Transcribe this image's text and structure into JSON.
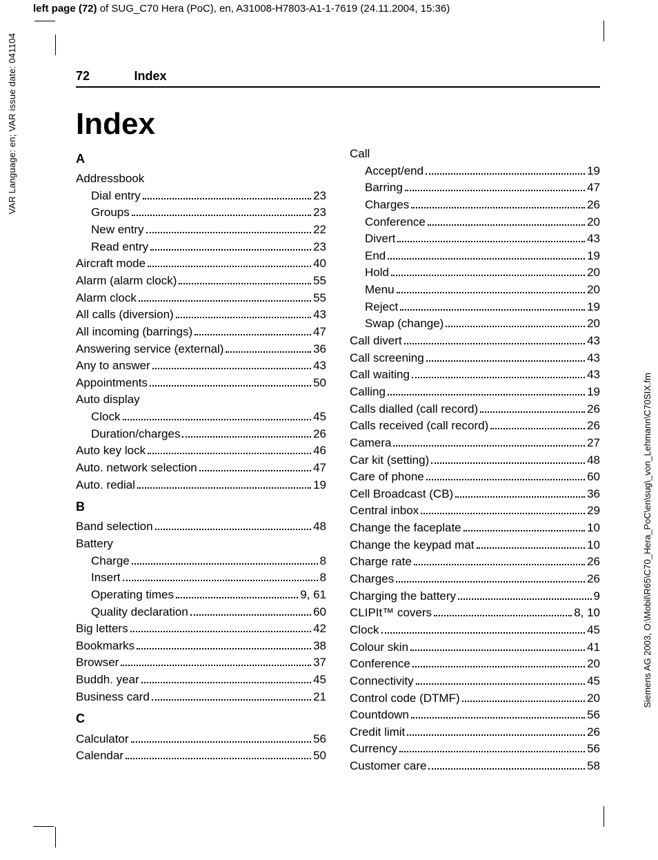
{
  "meta": {
    "top_bold": "left page (72)",
    "top_rest": " of SUG_C70 Hera (PoC), en, A31008-H7803-A1-1-7619 (24.11.2004, 15:36)",
    "left_side": "VAR Language: en; VAR issue date: 041104",
    "right_side": "Siemens AG 2003, O:\\Mobil\\R65\\C70_Hera_PoC\\en\\sug\\_von_Lehmann\\C70SIX.fm"
  },
  "header": {
    "page_number": "72",
    "section": "Index"
  },
  "title": "Index",
  "blocks": [
    {
      "type": "letter",
      "text": "A"
    },
    {
      "type": "heading",
      "label": "Addressbook"
    },
    {
      "type": "sub",
      "label": "Dial entry",
      "page": "23"
    },
    {
      "type": "sub",
      "label": "Groups",
      "page": "23"
    },
    {
      "type": "sub",
      "label": "New entry",
      "page": "22"
    },
    {
      "type": "sub",
      "label": "Read entry",
      "page": "23"
    },
    {
      "type": "entry",
      "label": "Aircraft mode",
      "page": "40"
    },
    {
      "type": "entry",
      "label": "Alarm (alarm clock)",
      "page": "55"
    },
    {
      "type": "entry",
      "label": "Alarm clock",
      "page": "55"
    },
    {
      "type": "entry",
      "label": "All calls (diversion)",
      "page": "43"
    },
    {
      "type": "entry",
      "label": "All incoming (barrings)",
      "page": "47"
    },
    {
      "type": "entry",
      "label": "Answering service (external)",
      "page": "36"
    },
    {
      "type": "entry",
      "label": "Any to answer",
      "page": "43"
    },
    {
      "type": "entry",
      "label": "Appointments",
      "page": "50"
    },
    {
      "type": "heading",
      "label": "Auto display"
    },
    {
      "type": "sub",
      "label": "Clock",
      "page": "45"
    },
    {
      "type": "sub",
      "label": "Duration/charges",
      "page": "26"
    },
    {
      "type": "entry",
      "label": "Auto key lock",
      "page": "46"
    },
    {
      "type": "entry",
      "label": "Auto. network selection",
      "page": "47"
    },
    {
      "type": "entry",
      "label": "Auto. redial",
      "page": "19"
    },
    {
      "type": "letter",
      "text": "B"
    },
    {
      "type": "entry",
      "label": "Band selection",
      "page": "48"
    },
    {
      "type": "heading",
      "label": "Battery"
    },
    {
      "type": "sub",
      "label": "Charge",
      "page": "8"
    },
    {
      "type": "sub",
      "label": "Insert",
      "page": "8"
    },
    {
      "type": "sub",
      "label": "Operating times",
      "page": "9, 61"
    },
    {
      "type": "sub",
      "label": "Quality declaration",
      "page": "60"
    },
    {
      "type": "entry",
      "label": "Big letters",
      "page": "42"
    },
    {
      "type": "entry",
      "label": "Bookmarks",
      "page": "38"
    },
    {
      "type": "entry",
      "label": "Browser",
      "page": "37"
    },
    {
      "type": "entry",
      "label": "Buddh. year",
      "page": "45"
    },
    {
      "type": "entry",
      "label": "Business card",
      "page": "21"
    },
    {
      "type": "letter",
      "text": "C"
    },
    {
      "type": "entry",
      "label": "Calculator",
      "page": "56"
    },
    {
      "type": "entry",
      "label": "Calendar",
      "page": "50"
    },
    {
      "type": "heading",
      "label": "Call"
    },
    {
      "type": "sub",
      "label": "Accept/end",
      "page": "19"
    },
    {
      "type": "sub",
      "label": "Barring",
      "page": "47"
    },
    {
      "type": "sub",
      "label": "Charges",
      "page": "26"
    },
    {
      "type": "sub",
      "label": "Conference",
      "page": "20"
    },
    {
      "type": "sub",
      "label": "Divert",
      "page": "43"
    },
    {
      "type": "sub",
      "label": "End",
      "page": "19"
    },
    {
      "type": "sub",
      "label": "Hold",
      "page": "20"
    },
    {
      "type": "sub",
      "label": "Menu",
      "page": "20"
    },
    {
      "type": "sub",
      "label": "Reject",
      "page": "19"
    },
    {
      "type": "sub",
      "label": "Swap (change)",
      "page": "20"
    },
    {
      "type": "entry",
      "label": "Call divert",
      "page": "43"
    },
    {
      "type": "entry",
      "label": "Call screening",
      "page": "43"
    },
    {
      "type": "entry",
      "label": "Call waiting",
      "page": "43"
    },
    {
      "type": "entry",
      "label": "Calling",
      "page": "19"
    },
    {
      "type": "entry",
      "label": "Calls dialled (call record)",
      "page": "26"
    },
    {
      "type": "entry",
      "label": "Calls received (call record)",
      "page": "26"
    },
    {
      "type": "entry",
      "label": "Camera",
      "page": "27"
    },
    {
      "type": "entry",
      "label": "Car kit (setting)",
      "page": "48"
    },
    {
      "type": "entry",
      "label": "Care of phone",
      "page": "60"
    },
    {
      "type": "entry",
      "label": "Cell Broadcast (CB)",
      "page": "36"
    },
    {
      "type": "entry",
      "label": "Central inbox",
      "page": "29"
    },
    {
      "type": "entry",
      "label": "Change the faceplate",
      "page": "10"
    },
    {
      "type": "entry",
      "label": "Change the keypad mat",
      "page": "10"
    },
    {
      "type": "entry",
      "label": "Charge rate",
      "page": "26"
    },
    {
      "type": "entry",
      "label": "Charges",
      "page": "26"
    },
    {
      "type": "entry",
      "label": "Charging the battery",
      "page": "9"
    },
    {
      "type": "entry",
      "label": "CLIPIt™ covers",
      "page": "8, 10"
    },
    {
      "type": "entry",
      "label": "Clock",
      "page": "45"
    },
    {
      "type": "entry",
      "label": "Colour skin",
      "page": "41"
    },
    {
      "type": "entry",
      "label": "Conference",
      "page": "20"
    },
    {
      "type": "entry",
      "label": "Connectivity",
      "page": "45"
    },
    {
      "type": "entry",
      "label": "Control code (DTMF)",
      "page": "20"
    },
    {
      "type": "entry",
      "label": "Countdown",
      "page": "56"
    },
    {
      "type": "entry",
      "label": "Credit limit",
      "page": "26"
    },
    {
      "type": "entry",
      "label": "Currency",
      "page": "56"
    },
    {
      "type": "entry",
      "label": "Customer care",
      "page": "58"
    }
  ]
}
